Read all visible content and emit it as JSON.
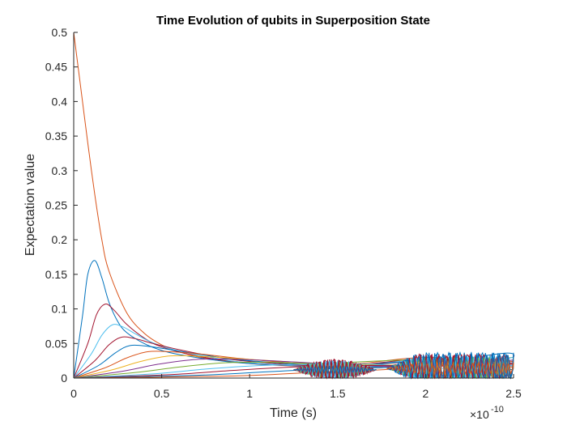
{
  "chart_data": {
    "type": "line",
    "title": "Time Evolution of qubits in Superposition State",
    "xlabel": "Time (s)",
    "ylabel": "Expectation value",
    "x_exponent_label": "×10",
    "x_exponent_power": "-10",
    "xlim": [
      0,
      2.5e-10
    ],
    "ylim": [
      0,
      0.5
    ],
    "x_ticks": [
      0,
      5e-11,
      1e-10,
      1.5e-10,
      2e-10,
      2.5e-10
    ],
    "x_tick_labels": [
      "0",
      "0.5",
      "1",
      "1.5",
      "2",
      "2.5"
    ],
    "y_ticks": [
      0,
      0.05,
      0.1,
      0.15,
      0.2,
      0.25,
      0.3,
      0.35,
      0.4,
      0.45,
      0.5
    ],
    "y_tick_labels": [
      "0",
      "0.05",
      "0.1",
      "0.15",
      "0.2",
      "0.25",
      "0.3",
      "0.35",
      "0.4",
      "0.45",
      "0.5"
    ],
    "grid": false,
    "legend": "none",
    "colors": [
      "#0072BD",
      "#D95319",
      "#EDB120",
      "#7E2F8E",
      "#77AC30",
      "#4DBEEE",
      "#A2142F"
    ],
    "series": [
      {
        "x": [
          0,
          2e-12,
          5e-12,
          8e-12,
          1.2e-11,
          1.6e-11,
          2e-11,
          3e-11,
          4e-11,
          5e-11,
          6e-11,
          7e-11,
          8e-11,
          1e-10,
          1.2e-10,
          1.5e-10,
          1.75e-10,
          2e-10,
          2.25e-10,
          2.5e-10
        ],
        "values": [
          0.5,
          0.46,
          0.4,
          0.34,
          0.265,
          0.2,
          0.155,
          0.095,
          0.065,
          0.048,
          0.038,
          0.031,
          0.027,
          0.021,
          0.018,
          0.016,
          0.015,
          0.022,
          0.028,
          0.02
        ]
      },
      {
        "x": [
          0,
          5e-12,
          8e-12,
          1.2e-11,
          1.6e-11,
          2e-11,
          2.5e-11,
          3e-11,
          4e-11,
          5e-11,
          6e-11,
          8e-11,
          1e-10,
          1.5e-10,
          2e-10,
          2.45e-10,
          2.5e-10
        ],
        "values": [
          0,
          0.09,
          0.15,
          0.17,
          0.145,
          0.11,
          0.082,
          0.066,
          0.05,
          0.04,
          0.034,
          0.026,
          0.021,
          0.016,
          0.02,
          0.036,
          0.028
        ]
      },
      {
        "x": [
          0,
          8e-12,
          1.3e-11,
          1.8e-11,
          2.3e-11,
          3e-11,
          4e-11,
          5e-11,
          7e-11,
          1e-10,
          1.5e-10,
          2e-10,
          2.5e-10
        ],
        "values": [
          0,
          0.05,
          0.092,
          0.107,
          0.098,
          0.078,
          0.058,
          0.045,
          0.032,
          0.022,
          0.017,
          0.024,
          0.02
        ]
      },
      {
        "x": [
          0,
          1e-11,
          1.6e-11,
          2.2e-11,
          2.8e-11,
          3.5e-11,
          4.5e-11,
          6e-11,
          8e-11,
          1e-10,
          1.5e-10,
          2e-10,
          2.5e-10
        ],
        "values": [
          0,
          0.035,
          0.062,
          0.077,
          0.074,
          0.064,
          0.051,
          0.039,
          0.029,
          0.022,
          0.017,
          0.026,
          0.018
        ]
      },
      {
        "x": [
          0,
          1.2e-11,
          2e-11,
          2.7e-11,
          3.5e-11,
          4.5e-11,
          6e-11,
          8e-11,
          1e-10,
          1.5e-10,
          2e-10,
          2.5e-10
        ],
        "values": [
          0,
          0.025,
          0.048,
          0.059,
          0.057,
          0.05,
          0.041,
          0.031,
          0.024,
          0.017,
          0.028,
          0.022
        ]
      },
      {
        "x": [
          0,
          1.4e-11,
          2.4e-11,
          3.2e-11,
          4.2e-11,
          5.5e-11,
          7.5e-11,
          1e-10,
          1.5e-10,
          2e-10,
          2.5e-10
        ],
        "values": [
          0,
          0.018,
          0.037,
          0.047,
          0.046,
          0.041,
          0.033,
          0.025,
          0.018,
          0.024,
          0.016
        ]
      },
      {
        "x": [
          0,
          1.8e-11,
          3e-11,
          4.2e-11,
          5.5e-11,
          7.5e-11,
          1e-10,
          1.5e-10,
          2e-10,
          2.5e-10
        ],
        "values": [
          0,
          0.015,
          0.029,
          0.038,
          0.038,
          0.034,
          0.027,
          0.019,
          0.03,
          0.024
        ]
      },
      {
        "x": [
          0,
          2.2e-11,
          3.8e-11,
          5.5e-11,
          7.5e-11,
          1e-10,
          1.5e-10,
          2e-10,
          2.5e-10
        ],
        "values": [
          0,
          0.012,
          0.024,
          0.032,
          0.031,
          0.027,
          0.02,
          0.02,
          0.03
        ]
      },
      {
        "x": [
          0,
          2.8e-11,
          4.8e-11,
          7e-11,
          9.5e-11,
          1.2e-10,
          1.5e-10,
          2e-10,
          2.5e-10
        ],
        "values": [
          0,
          0.01,
          0.02,
          0.027,
          0.027,
          0.024,
          0.02,
          0.016,
          0.026
        ]
      },
      {
        "x": [
          0,
          3.5e-11,
          6e-11,
          8.5e-11,
          1.1e-10,
          1.4e-10,
          2e-10,
          2.5e-10
        ],
        "values": [
          0,
          0.008,
          0.016,
          0.022,
          0.023,
          0.021,
          0.026,
          0.012
        ]
      },
      {
        "x": [
          0,
          4.5e-11,
          7.5e-11,
          1.05e-10,
          1.35e-10,
          1.7e-10,
          2.1e-10,
          2.5e-10
        ],
        "values": [
          0,
          0.006,
          0.013,
          0.018,
          0.02,
          0.02,
          0.014,
          0.03
        ]
      },
      {
        "x": [
          0,
          5.5e-11,
          9e-11,
          1.25e-10,
          1.6e-10,
          2e-10,
          2.5e-10
        ],
        "values": [
          0,
          0.005,
          0.011,
          0.016,
          0.018,
          0.018,
          0.02
        ]
      },
      {
        "x": [
          0,
          7e-11,
          1.1e-10,
          1.5e-10,
          1.9e-10,
          2.2e-10,
          2.5e-10
        ],
        "values": [
          0,
          0.004,
          0.009,
          0.014,
          0.016,
          0.022,
          0.012
        ]
      },
      {
        "x": [
          0,
          9e-11,
          1.35e-10,
          1.75e-10,
          2.1e-10,
          2.5e-10
        ],
        "values": [
          0,
          0.003,
          0.008,
          0.012,
          0.018,
          0.016
        ]
      }
    ],
    "oscillation_regions": [
      {
        "x_start": 1.25e-10,
        "x_end": 1.72e-10,
        "amplitude": 0.02,
        "center": 0.012
      },
      {
        "x_start": 1.78e-10,
        "x_end": 2.5e-10,
        "amplitude": 0.03,
        "center": 0.014
      }
    ]
  }
}
